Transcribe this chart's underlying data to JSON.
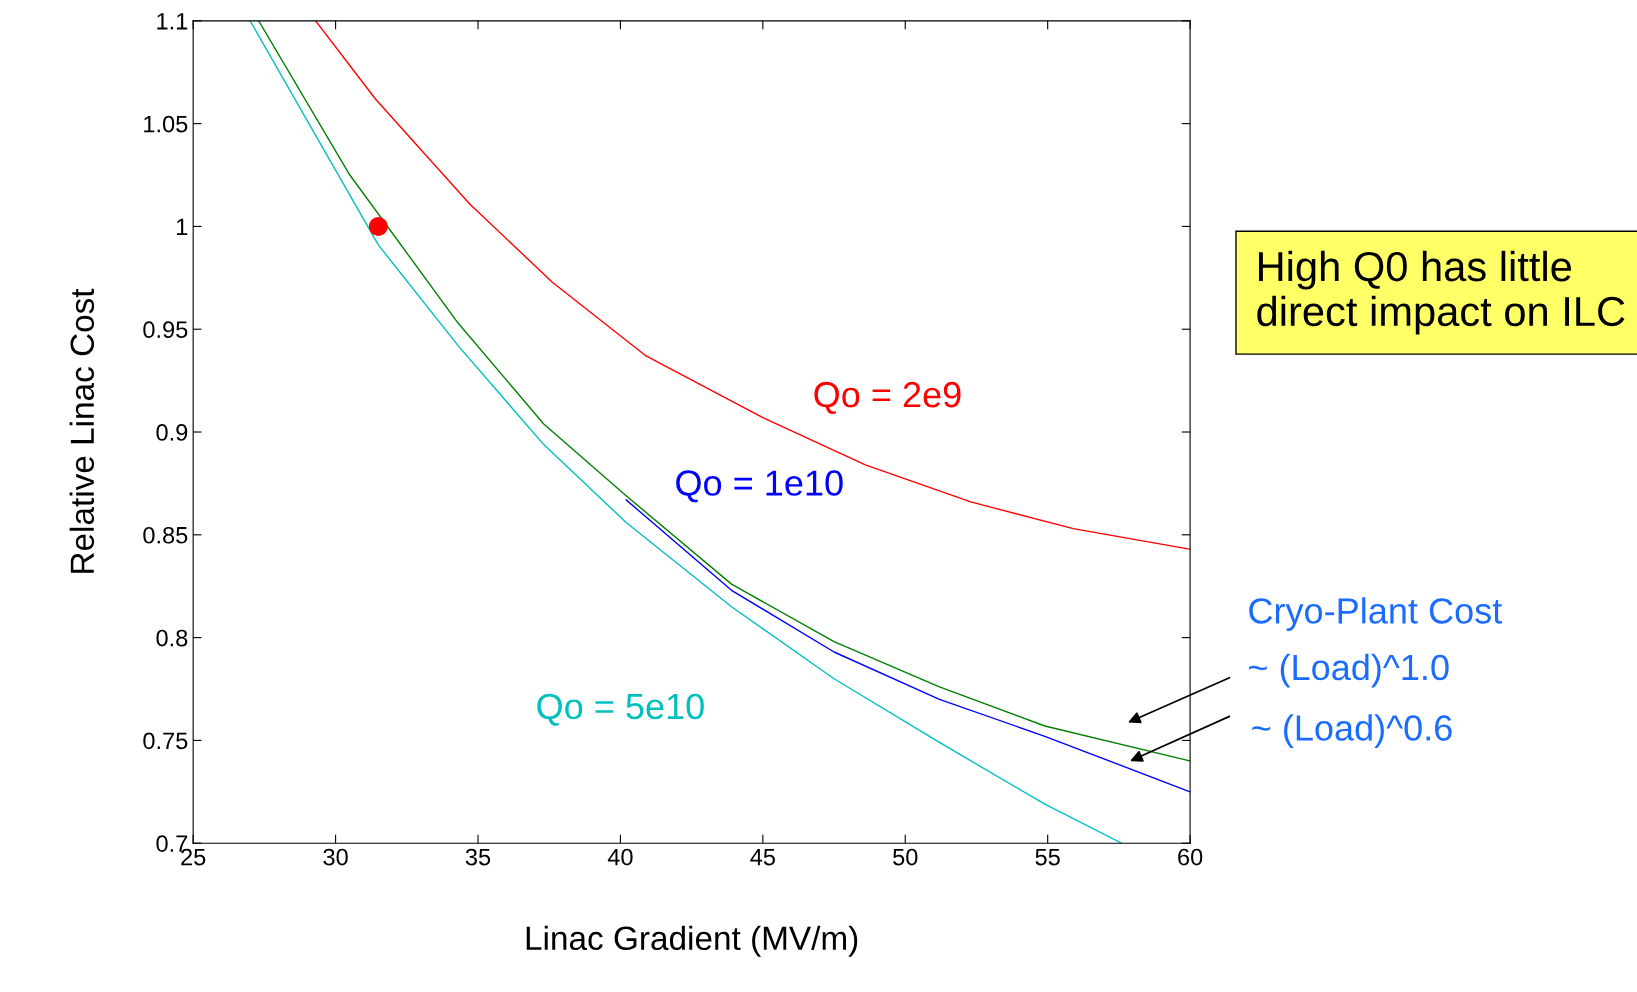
{
  "chart_data": {
    "type": "line",
    "xlabel": "Linac Gradient (MV/m)",
    "ylabel": "Relative Linac Cost",
    "xlim": [
      25,
      60
    ],
    "ylim": [
      0.7,
      1.1
    ],
    "xticks": [
      25,
      30,
      35,
      40,
      45,
      50,
      55,
      60
    ],
    "yticks": [
      0.7,
      0.75,
      0.8,
      0.85,
      0.9,
      0.95,
      1,
      1.05,
      1.1
    ],
    "grid": false,
    "legend": false,
    "marker": "none",
    "line_style": "solid",
    "series": [
      {
        "name": "Qo = 2e9",
        "color": "#ff0000",
        "x": [
          29.3,
          31.4,
          34.7,
          37.6,
          40.9,
          45,
          48.6,
          52.3,
          55.9,
          60
        ],
        "values": [
          1.1,
          1.062,
          1.011,
          0.973,
          0.937,
          0.907,
          0.884,
          0.866,
          0.853,
          0.843
        ]
      },
      {
        "name": "Qo = 1e10",
        "color": "#0000ff",
        "x": [
          40.2,
          43.9,
          47.5,
          51.2,
          54.9,
          60
        ],
        "values": [
          0.867,
          0.823,
          0.793,
          0.77,
          0.752,
          0.725
        ]
      },
      {
        "color": "#008000",
        "x": [
          27.3,
          30.5,
          34.3,
          37.3,
          40.2,
          43.9,
          47.5,
          51.2,
          54.9,
          60
        ],
        "values": [
          1.1,
          1.025,
          0.953,
          0.904,
          0.869,
          0.826,
          0.798,
          0.776,
          0.757,
          0.74
        ]
      },
      {
        "name": "Qo = 5e10",
        "color": "#00bfbf",
        "x": [
          27.0,
          31.5,
          34.3,
          37.3,
          40.2,
          43.9,
          47.5,
          51.2,
          54.9,
          57.6
        ],
        "values": [
          1.1,
          0.991,
          0.942,
          0.894,
          0.856,
          0.815,
          0.78,
          0.749,
          0.719,
          0.7
        ]
      },
      {
        "type": "scatter",
        "marker": "circle",
        "color": "#ff0000",
        "x": [
          31.5
        ],
        "values": [
          1.0
        ]
      }
    ],
    "annotations": [
      "High Q0 has little direct impact on ILC",
      "Cryo-Plant Cost",
      "~ (Load)^1.0",
      "~ (Load)^0.6"
    ]
  }
}
